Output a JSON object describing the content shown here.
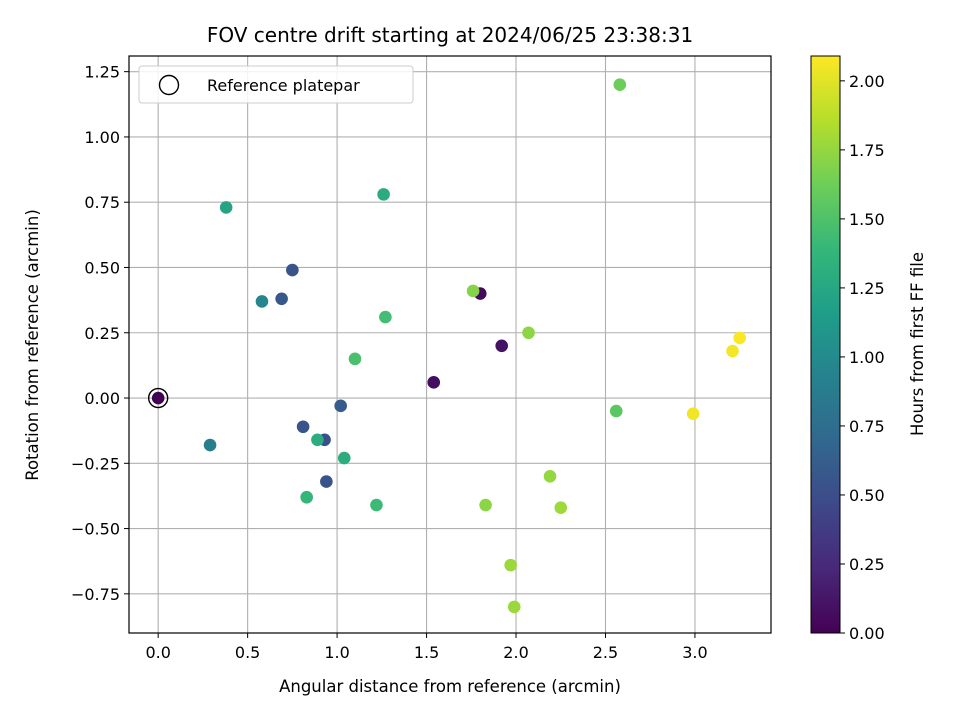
{
  "chart_data": {
    "type": "scatter",
    "title": "FOV centre drift starting at 2024/06/25 23:38:31",
    "xlabel": "Angular distance from reference (arcmin)",
    "ylabel": "Rotation from reference (arcmin)",
    "xlim": [
      -0.163,
      3.425
    ],
    "ylim": [
      -0.9,
      1.31
    ],
    "xticks": [
      0.0,
      0.5,
      1.0,
      1.5,
      2.0,
      2.5,
      3.0
    ],
    "xtick_labels": [
      "0.0",
      "0.5",
      "1.0",
      "1.5",
      "2.0",
      "2.5",
      "3.0"
    ],
    "yticks": [
      -0.75,
      -0.5,
      -0.25,
      0.0,
      0.25,
      0.5,
      0.75,
      1.0,
      1.25
    ],
    "ytick_labels": [
      "−0.75",
      "−0.50",
      "−0.25",
      "0.00",
      "0.25",
      "0.50",
      "0.75",
      "1.00",
      "1.25"
    ],
    "grid": true,
    "legend": {
      "position": "top-left",
      "label": "Reference platepar",
      "marker": "hollow-circle"
    },
    "reference_point": {
      "x": 0.0,
      "y": 0.0
    },
    "colorbar": {
      "label": "Hours from first FF file",
      "range": [
        0.0,
        2.09
      ],
      "ticks": [
        0.0,
        0.25,
        0.5,
        0.75,
        1.0,
        1.25,
        1.5,
        1.75,
        2.0
      ],
      "tick_labels": [
        "0.00",
        "0.25",
        "0.50",
        "0.75",
        "1.00",
        "1.25",
        "1.50",
        "1.75",
        "2.00"
      ],
      "colormap": "viridis",
      "stops": [
        "#440154",
        "#482878",
        "#3e4989",
        "#31688e",
        "#26828e",
        "#1f9e89",
        "#35b779",
        "#6ece58",
        "#b5de2b",
        "#fde725"
      ]
    },
    "points": [
      {
        "x": 0.0,
        "y": 0.0,
        "c": 0.0
      },
      {
        "x": 1.8,
        "y": 0.4,
        "c": 0.05
      },
      {
        "x": 1.54,
        "y": 0.06,
        "c": 0.07
      },
      {
        "x": 1.92,
        "y": 0.2,
        "c": 0.1
      },
      {
        "x": 0.75,
        "y": 0.49,
        "c": 0.55
      },
      {
        "x": 0.69,
        "y": 0.38,
        "c": 0.58
      },
      {
        "x": 0.94,
        "y": -0.32,
        "c": 0.55
      },
      {
        "x": 0.93,
        "y": -0.16,
        "c": 0.52
      },
      {
        "x": 0.81,
        "y": -0.11,
        "c": 0.55
      },
      {
        "x": 1.02,
        "y": -0.03,
        "c": 0.6
      },
      {
        "x": 0.29,
        "y": -0.18,
        "c": 0.9
      },
      {
        "x": 0.58,
        "y": 0.37,
        "c": 0.97
      },
      {
        "x": 0.38,
        "y": 0.73,
        "c": 1.22
      },
      {
        "x": 1.26,
        "y": 0.78,
        "c": 1.28
      },
      {
        "x": 0.89,
        "y": -0.16,
        "c": 1.3
      },
      {
        "x": 1.04,
        "y": -0.23,
        "c": 1.3
      },
      {
        "x": 0.83,
        "y": -0.38,
        "c": 1.38
      },
      {
        "x": 1.22,
        "y": -0.41,
        "c": 1.42
      },
      {
        "x": 1.27,
        "y": 0.31,
        "c": 1.45
      },
      {
        "x": 1.1,
        "y": 0.15,
        "c": 1.48
      },
      {
        "x": 2.56,
        "y": -0.05,
        "c": 1.55
      },
      {
        "x": 2.58,
        "y": 1.2,
        "c": 1.62
      },
      {
        "x": 1.76,
        "y": 0.41,
        "c": 1.7
      },
      {
        "x": 2.07,
        "y": 0.25,
        "c": 1.72
      },
      {
        "x": 1.83,
        "y": -0.41,
        "c": 1.72
      },
      {
        "x": 2.19,
        "y": -0.3,
        "c": 1.75
      },
      {
        "x": 1.97,
        "y": -0.64,
        "c": 1.77
      },
      {
        "x": 1.99,
        "y": -0.8,
        "c": 1.77
      },
      {
        "x": 2.25,
        "y": -0.42,
        "c": 1.78
      },
      {
        "x": 2.99,
        "y": -0.06,
        "c": 2.05
      },
      {
        "x": 3.21,
        "y": 0.18,
        "c": 2.06
      },
      {
        "x": 3.25,
        "y": 0.23,
        "c": 2.08
      }
    ]
  }
}
